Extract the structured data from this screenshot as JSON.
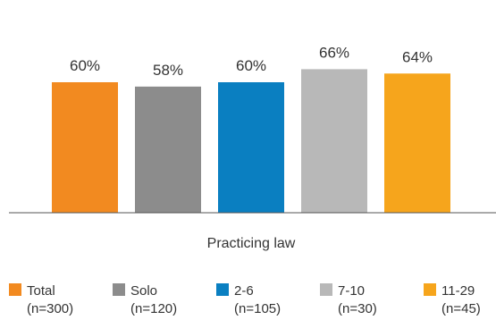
{
  "chart_data": {
    "type": "bar",
    "categories": [
      "Total",
      "Solo",
      "2-6",
      "7-10",
      "11-29"
    ],
    "category_notes": [
      "(n=300)",
      "(n=120)",
      "(n=105)",
      "(n=30)",
      "(n=45)"
    ],
    "values": [
      60,
      58,
      60,
      66,
      64
    ],
    "value_labels": [
      "60%",
      "58%",
      "60%",
      "66%",
      "64%"
    ],
    "colors": [
      "#f28a20",
      "#8c8c8c",
      "#0a7fc1",
      "#b8b8b8",
      "#f6a51c"
    ],
    "xlabel": "Practicing law",
    "ylabel": "",
    "title": "",
    "ylim": [
      0,
      100
    ],
    "grid": false,
    "legend_position": "bottom"
  }
}
